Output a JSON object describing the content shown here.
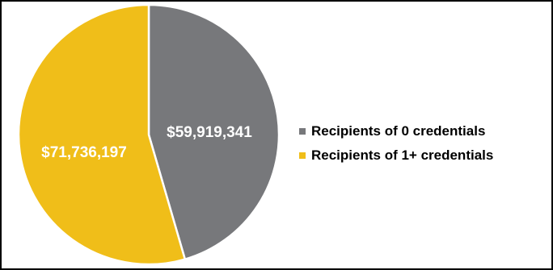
{
  "chart_data": {
    "type": "pie",
    "title": "",
    "start_angle": "top",
    "direction": "clockwise",
    "slices": [
      {
        "name": "Recipients of 0 credentials",
        "value": 59919341,
        "label": "$59,919,341",
        "color": "#77787b"
      },
      {
        "name": "Recipients of 1+ credentials",
        "value": 71736197,
        "label": "$71,736,197",
        "color": "#f0be19"
      }
    ],
    "legend_position": "right"
  },
  "colors": {
    "border": "#000000",
    "background": "#ffffff",
    "separator": "#ffffff"
  }
}
